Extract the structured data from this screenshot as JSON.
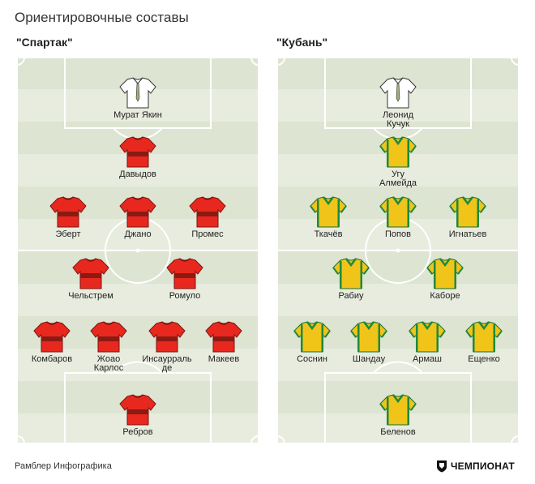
{
  "title": "Ориентировочные составы",
  "footer": "Рамблер Инфографика",
  "brand": "ЧЕМПИОНАТ",
  "colors": {
    "pitch_dark": "#dde4d2",
    "pitch_light": "#e8ecdf",
    "spartak_shirt": "#e8281e",
    "spartak_band": "#8a1a12",
    "kuban_shirt": "#f0c419",
    "kuban_trim": "#1e8a3c",
    "coach_shirt": "#ffffff"
  },
  "teams": [
    {
      "name": "\"Спартак\"",
      "kit": "spartak",
      "coach": "Мурат Якин",
      "players": [
        "Давыдов",
        "Эберт",
        "Джано",
        "Промес",
        "Чельстрем",
        "Ромуло",
        "Комбаров",
        "Жоао\nКарлос",
        "Инсаурраль\nде",
        "Макеев",
        "Ребров"
      ]
    },
    {
      "name": "\"Кубань\"",
      "kit": "kuban",
      "coach": "Леонид\nКучук",
      "players": [
        "Угу\nАлмейда",
        "Ткачёв",
        "Попов",
        "Игнатьев",
        "Рабиу",
        "Каборе",
        "Соснин",
        "Шандау",
        "Армаш",
        "Ещенко",
        "Беленов"
      ]
    }
  ]
}
